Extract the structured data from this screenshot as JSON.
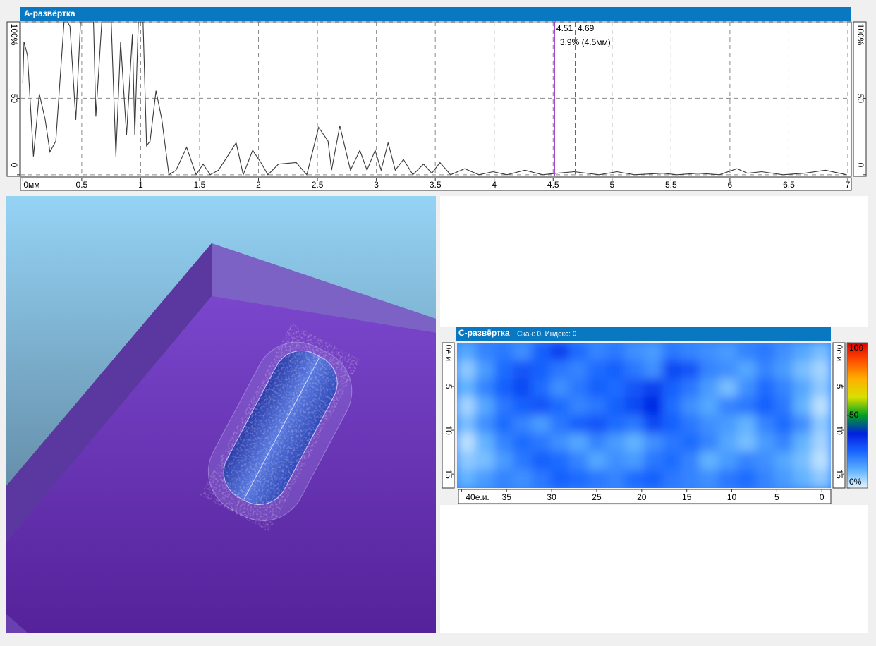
{
  "a_scan": {
    "type": "line",
    "title": "А-развёртка",
    "color": "#383838",
    "x": [
      0,
      0.01,
      0.04,
      0.09,
      0.14,
      0.19,
      0.23,
      0.28,
      0.35,
      0.38,
      0.4,
      0.45,
      0.49,
      0.6,
      0.62,
      0.67,
      0.75,
      0.79,
      0.83,
      0.88,
      0.93,
      0.95,
      0.98,
      1.02,
      1.05,
      1.08,
      1.13,
      1.18,
      1.24,
      1.3,
      1.39,
      1.47,
      1.53,
      1.59,
      1.66,
      1.72,
      1.81,
      1.87,
      1.95,
      2.02,
      2.08,
      2.17,
      2.32,
      2.41,
      2.51,
      2.59,
      2.62,
      2.69,
      2.78,
      2.86,
      2.92,
      2.99,
      3.04,
      3.1,
      3.16,
      3.23,
      3.31,
      3.4,
      3.47,
      3.54,
      3.63,
      3.75,
      3.87,
      3.99,
      4.11,
      4.26,
      4.41,
      4.53,
      4.68,
      4.89,
      5.04,
      5.19,
      5.43,
      5.55,
      5.73,
      5.91,
      6.06,
      6.15,
      6.27,
      6.45,
      6.63,
      6.81,
      6.99
    ],
    "values": [
      60,
      87,
      78,
      12,
      53,
      36,
      15,
      22,
      100,
      100,
      97,
      36,
      100,
      100,
      38,
      100,
      100,
      12,
      87,
      26,
      92,
      26,
      100,
      100,
      19,
      22,
      55,
      36,
      0,
      3,
      18,
      0,
      7,
      0,
      3,
      10,
      21,
      0,
      16,
      8,
      0,
      7,
      8,
      0,
      31,
      22,
      3,
      32,
      3,
      16,
      3,
      16,
      3,
      21,
      3,
      10,
      0,
      7,
      1,
      8,
      0,
      4,
      0,
      2,
      0,
      3,
      0,
      1,
      2,
      0,
      2,
      0,
      1,
      0,
      1,
      0,
      4,
      1,
      2,
      0,
      1,
      3,
      0
    ],
    "xlim": [
      -0.02,
      7.03
    ],
    "ylim": [
      -1,
      100
    ],
    "xticks": [
      {
        "value": 0,
        "label": "0мм"
      },
      0.5,
      1,
      1.5,
      2,
      2.5,
      3,
      3.5,
      4,
      4.5,
      5,
      5.5,
      6,
      6.5,
      7
    ],
    "yticks": [
      0,
      50,
      {
        "value": 100,
        "label": "100%"
      }
    ],
    "grid": true,
    "cursors": [
      {
        "value": 4.51,
        "color": "#a03cc8"
      },
      {
        "value": 4.69,
        "color": "#1a7fb0"
      }
    ],
    "cursor_readout": "3.9% (4.5мм)"
  },
  "c_scan": {
    "type": "heatmap",
    "title": "С-развёртка",
    "subtitle": "Скан: 0, Индекс: 0",
    "xlim": [
      40.5,
      -1
    ],
    "ylim": [
      0,
      16.6
    ],
    "xticks": [
      {
        "value": 40,
        "label": "40е.и."
      },
      35,
      30,
      25,
      20,
      15,
      10,
      5,
      0
    ],
    "yticks": [
      {
        "value": 0,
        "label": "0е.и."
      },
      5,
      10,
      15
    ],
    "values": [
      [
        14,
        20,
        22,
        18,
        26,
        32,
        24,
        20,
        22,
        18,
        16,
        22,
        20,
        18,
        16,
        20,
        22,
        18,
        14,
        10
      ],
      [
        8,
        16,
        24,
        28,
        26,
        22,
        20,
        24,
        26,
        22,
        18,
        30,
        28,
        20,
        18,
        14,
        20,
        16,
        10,
        6
      ],
      [
        12,
        20,
        26,
        30,
        24,
        18,
        22,
        26,
        24,
        28,
        32,
        26,
        22,
        16,
        10,
        18,
        24,
        20,
        14,
        8
      ],
      [
        6,
        14,
        22,
        26,
        28,
        24,
        20,
        22,
        26,
        30,
        36,
        24,
        18,
        14,
        20,
        22,
        26,
        22,
        12,
        4
      ],
      [
        10,
        18,
        24,
        20,
        16,
        22,
        26,
        28,
        24,
        22,
        30,
        26,
        22,
        18,
        16,
        12,
        20,
        24,
        18,
        8
      ],
      [
        4,
        12,
        20,
        24,
        22,
        18,
        14,
        20,
        16,
        12,
        18,
        22,
        24,
        20,
        14,
        10,
        16,
        20,
        12,
        6
      ],
      [
        8,
        10,
        16,
        22,
        26,
        24,
        20,
        14,
        18,
        16,
        22,
        24,
        20,
        12,
        16,
        20,
        18,
        14,
        10,
        4
      ],
      [
        12,
        16,
        20,
        18,
        22,
        26,
        24,
        22,
        20,
        24,
        26,
        22,
        20,
        18,
        22,
        24,
        20,
        16,
        12,
        8
      ]
    ],
    "colorbar": {
      "lim": [
        0,
        100
      ],
      "ticks": [
        {
          "value": 0,
          "label": "0%"
        },
        50,
        100
      ],
      "colors": [
        "#e8f6ff",
        "#5cb0ff",
        "#1a66ff",
        "#0020e0",
        "#00a020",
        "#d8e000",
        "#ffb000",
        "#ff5000",
        "#e00000"
      ]
    }
  }
}
